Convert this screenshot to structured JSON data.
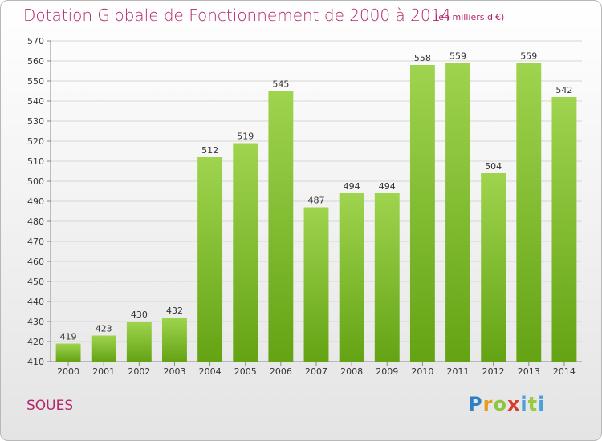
{
  "chart_data": {
    "type": "bar",
    "title": "Dotation Globale de Fonctionnement de 2000 à 2014",
    "subtitle": "(en milliers d'€)",
    "xlabel": "",
    "ylabel": "",
    "categories": [
      "2000",
      "2001",
      "2002",
      "2003",
      "2004",
      "2005",
      "2006",
      "2007",
      "2008",
      "2009",
      "2010",
      "2011",
      "2012",
      "2013",
      "2014"
    ],
    "values": [
      419,
      423,
      430,
      432,
      512,
      519,
      545,
      487,
      494,
      494,
      558,
      559,
      504,
      559,
      542
    ],
    "ylim": [
      410,
      570
    ],
    "ytick_step": 10,
    "grid": true,
    "bar_color": "#7fbf2e",
    "data_labels": true
  },
  "footer": {
    "place": "SOUES",
    "logo": [
      "P",
      "r",
      "o",
      "x",
      "i",
      "t",
      "i"
    ]
  },
  "colors": {
    "title": "#b5266b",
    "grid": "#d6d6d6"
  }
}
